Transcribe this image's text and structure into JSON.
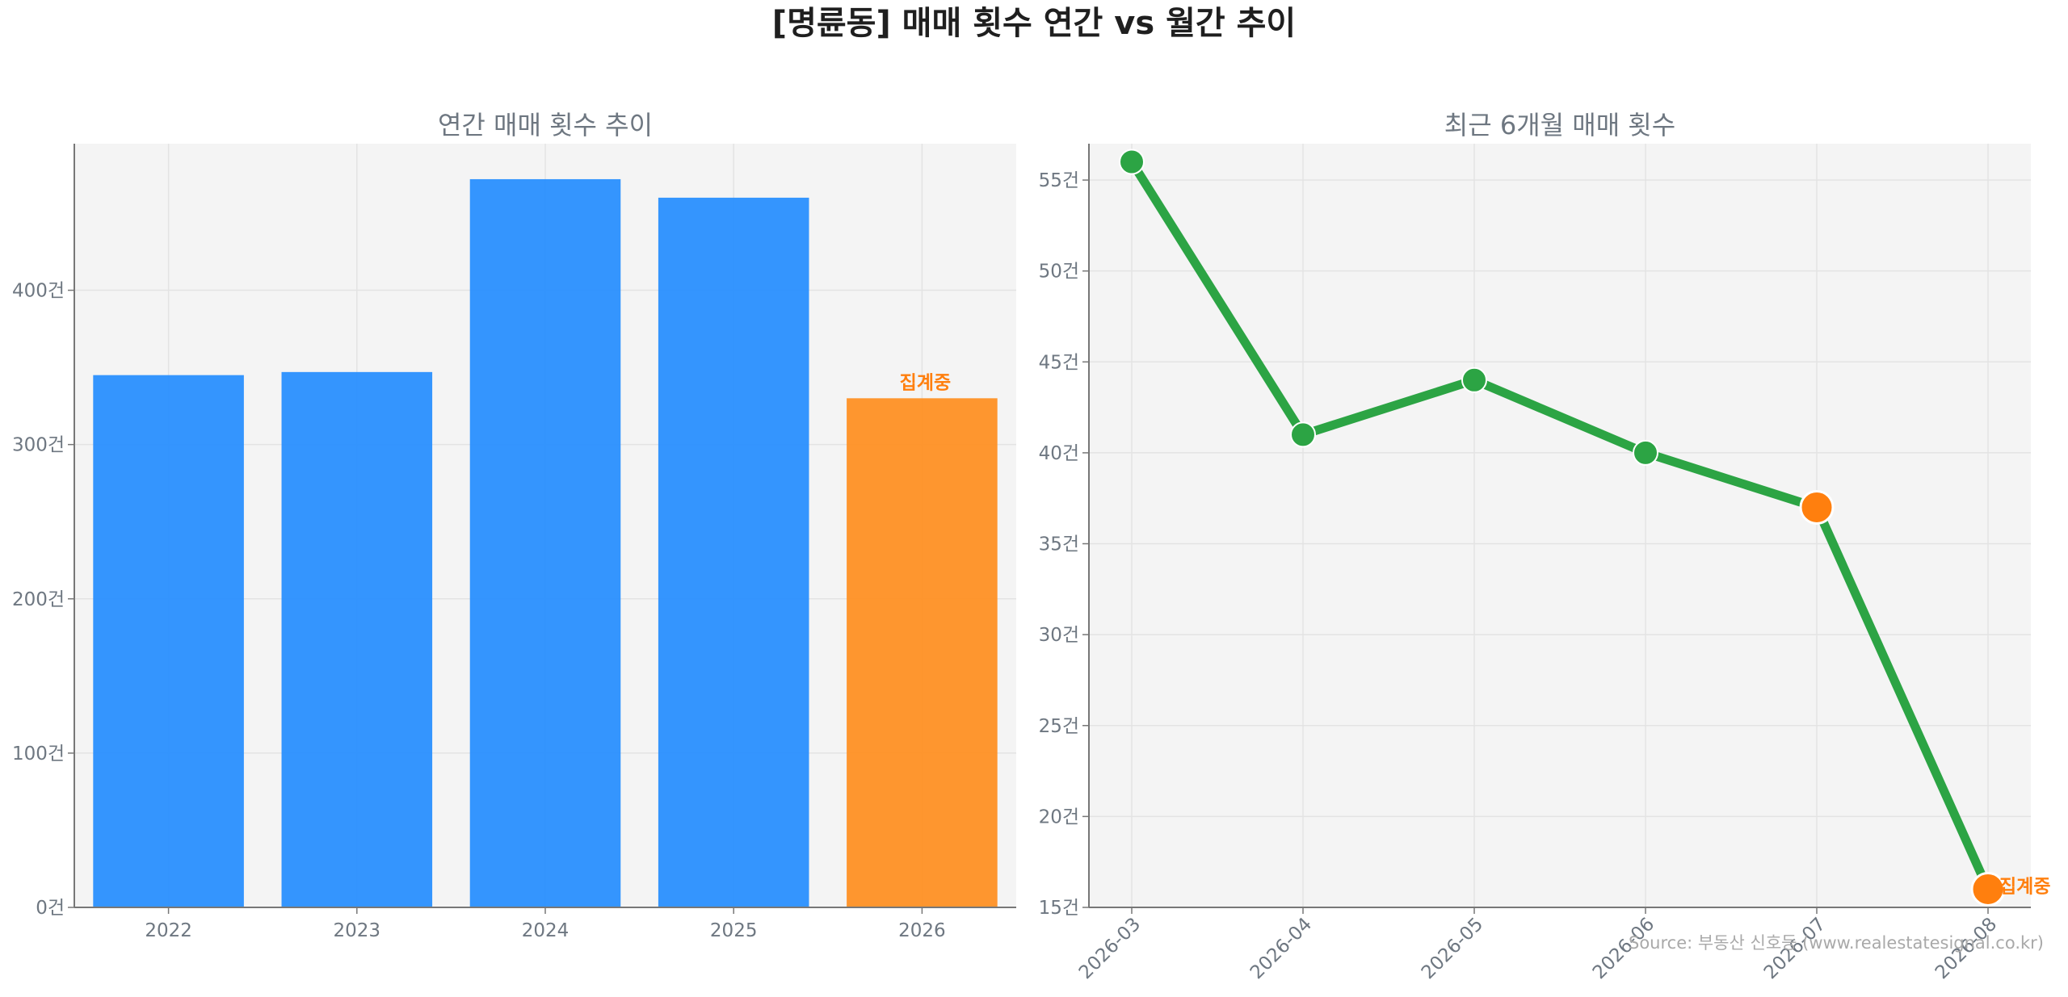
{
  "title": "[명륜동] 매매 횟수 연간 vs 월간 추이",
  "source": "Source: 부동산 신호등 (www.realestatesignal.co.kr)",
  "colors": {
    "bar": "#1f8bff",
    "bar_partial": "#ff8c1a",
    "line": "#2ca444",
    "highlight": "#ff7f0e",
    "plot_bg": "#f4f4f4",
    "grid": "#e3e3e3",
    "axis": "#777777",
    "title_text": "#1f1f1f",
    "muted_text": "#6e7781"
  },
  "chart_data": [
    {
      "type": "bar",
      "title": "연간 매매 횟수 추이",
      "categories": [
        "2022",
        "2023",
        "2024",
        "2025",
        "2026"
      ],
      "values": [
        345,
        347,
        472,
        460,
        330
      ],
      "ylim": [
        0,
        495
      ],
      "yticks": [
        0,
        100,
        200,
        300,
        400
      ],
      "ytick_labels": [
        "0건",
        "100건",
        "200건",
        "300건",
        "400건"
      ],
      "grid": true,
      "partial_index": 4,
      "annotation": "집계중"
    },
    {
      "type": "line",
      "title": "최근 6개월 매매 횟수",
      "x": [
        "2026-03",
        "2026-04",
        "2026-05",
        "2026-06",
        "2026-07",
        "2026-08"
      ],
      "values": [
        56,
        41,
        44,
        40,
        37,
        16
      ],
      "ylim": [
        15,
        57
      ],
      "yticks": [
        15,
        20,
        25,
        30,
        35,
        40,
        45,
        50,
        55
      ],
      "ytick_labels": [
        "15건",
        "20건",
        "25건",
        "30건",
        "35건",
        "40건",
        "45건",
        "50건",
        "55건"
      ],
      "grid": true,
      "highlight_indices": [
        4,
        5
      ],
      "annotation": "집계중",
      "annotation_index": 5
    }
  ]
}
